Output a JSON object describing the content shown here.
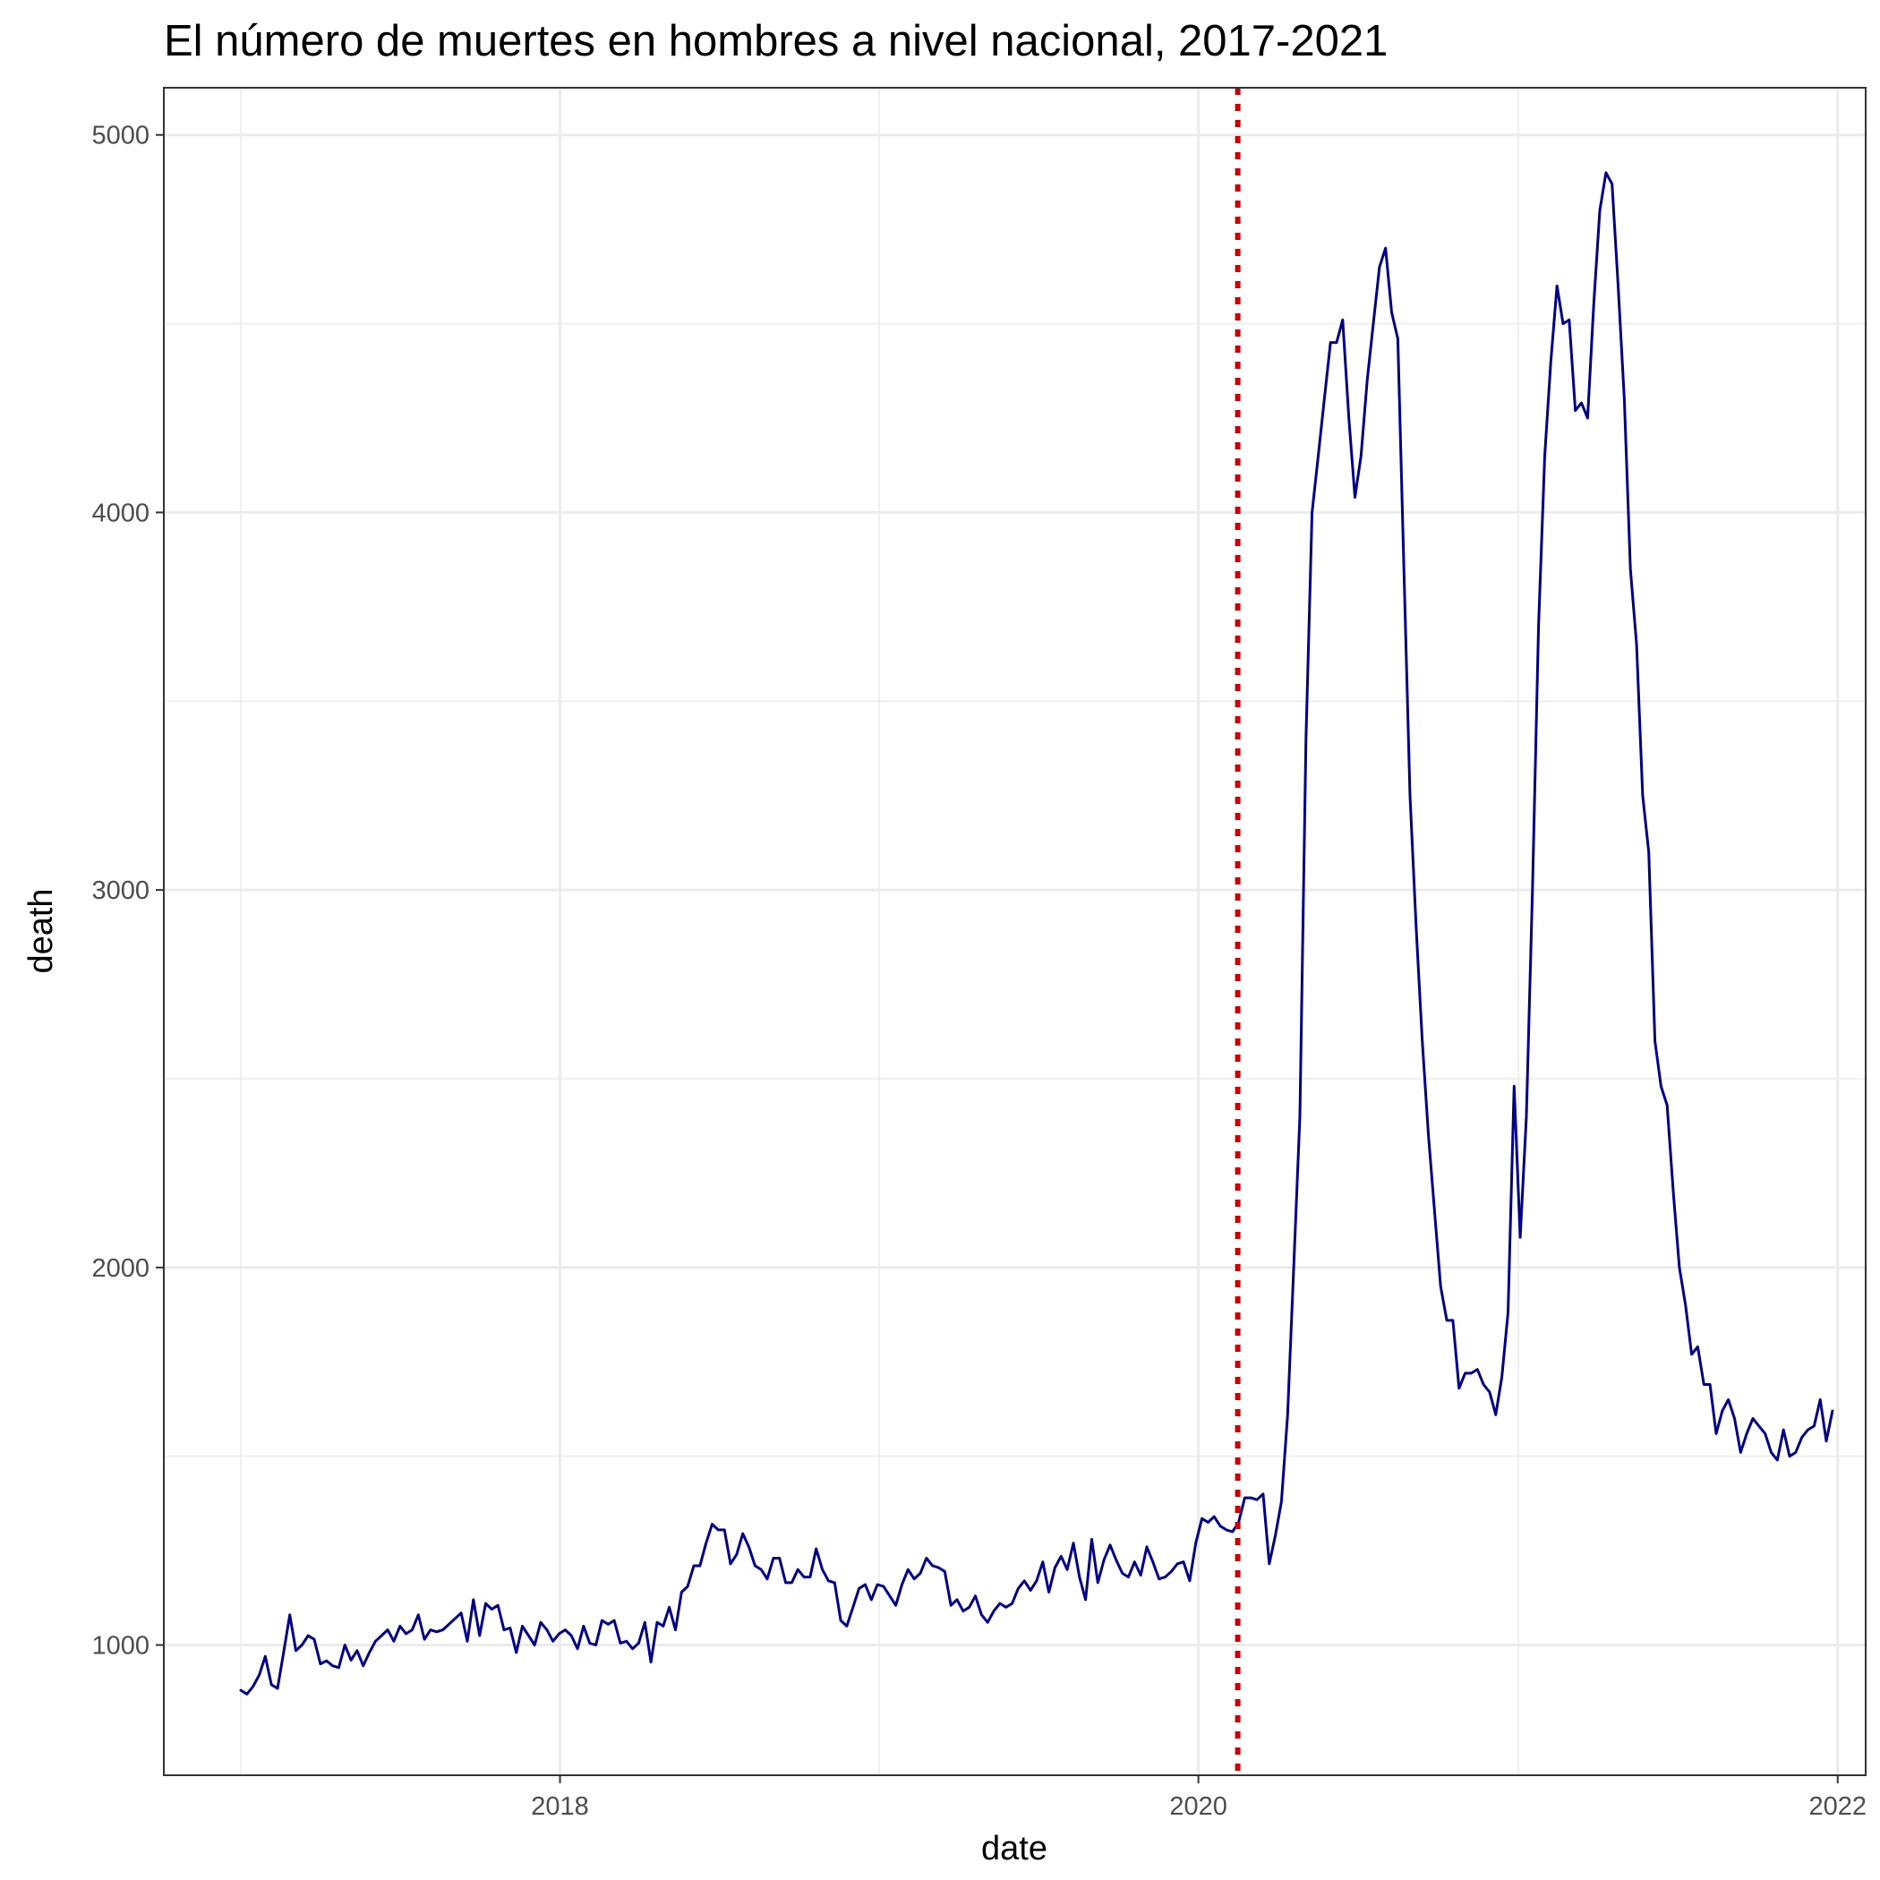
{
  "chart_data": {
    "type": "line",
    "title": "El número de muertes en hombres a nivel nacional, 2017-2021",
    "xlabel": "date",
    "ylabel": "death",
    "x_ticks": [
      "2018",
      "2020",
      "2022"
    ],
    "y_ticks": [
      "1000",
      "2000",
      "3000",
      "4000",
      "5000"
    ],
    "xlim": [
      "2016-10-05",
      "2022-02-02"
    ],
    "ylim": [
      655,
      5125
    ],
    "grid": true,
    "legend": "none",
    "line_color": "#00008B",
    "vline": {
      "date": "2020-02-15",
      "color": "#CC0000",
      "style": "dotted"
    },
    "series": [
      {
        "x_start": "2017-01-01",
        "interval_days": 7,
        "values": [
          880,
          870,
          890,
          920,
          970,
          895,
          885,
          980,
          1080,
          985,
          1000,
          1025,
          1015,
          950,
          958,
          945,
          940,
          1000,
          960,
          985,
          945,
          980,
          1010,
          1025,
          1040,
          1010,
          1050,
          1030,
          1040,
          1080,
          1015,
          1040,
          1035,
          1040,
          1055,
          1070,
          1085,
          1010,
          1120,
          1025,
          1110,
          1095,
          1105,
          1040,
          1045,
          980,
          1050,
          1025,
          1000,
          1060,
          1040,
          1010,
          1030,
          1040,
          1025,
          990,
          1050,
          1005,
          1000,
          1065,
          1055,
          1065,
          1005,
          1010,
          990,
          1005,
          1060,
          955,
          1060,
          1050,
          1100,
          1040,
          1140,
          1155,
          1210,
          1210,
          1270,
          1320,
          1305,
          1305,
          1215,
          1240,
          1295,
          1260,
          1210,
          1200,
          1175,
          1230,
          1230,
          1165,
          1165,
          1200,
          1180,
          1180,
          1255,
          1200,
          1170,
          1165,
          1065,
          1050,
          1100,
          1150,
          1160,
          1120,
          1160,
          1155,
          1130,
          1105,
          1160,
          1200,
          1175,
          1190,
          1230,
          1210,
          1205,
          1195,
          1105,
          1120,
          1090,
          1100,
          1130,
          1080,
          1060,
          1090,
          1110,
          1100,
          1110,
          1150,
          1170,
          1145,
          1170,
          1220,
          1140,
          1205,
          1235,
          1200,
          1270,
          1180,
          1120,
          1280,
          1165,
          1225,
          1265,
          1225,
          1190,
          1180,
          1220,
          1185,
          1260,
          1220,
          1175,
          1180,
          1195,
          1215,
          1220,
          1170,
          1270,
          1335,
          1325,
          1340,
          1315,
          1305,
          1300,
          1325,
          1390,
          1390,
          1385,
          1400,
          1215,
          1290,
          1380,
          1610,
          2000,
          2400,
          3400,
          4000,
          4150,
          4300,
          4450,
          4450,
          4510,
          4250,
          4040,
          4150,
          4350,
          4500,
          4650,
          4700,
          4530,
          4460,
          3850,
          3250,
          2900,
          2600,
          2350,
          2150,
          1950,
          1860,
          1860,
          1680,
          1720,
          1720,
          1730,
          1690,
          1670,
          1610,
          1710,
          1880,
          2480,
          2080,
          2400,
          3000,
          3700,
          4150,
          4400,
          4600,
          4500,
          4510,
          4270,
          4290,
          4250,
          4550,
          4800,
          4900,
          4870,
          4600,
          4300,
          3850,
          3650,
          3250,
          3100,
          2600,
          2480,
          2430,
          2200,
          2000,
          1900,
          1770,
          1790,
          1690,
          1690,
          1560,
          1620,
          1650,
          1600,
          1510,
          1560,
          1600,
          1580,
          1560,
          1510,
          1490,
          1570,
          1500,
          1510,
          1550,
          1570,
          1580,
          1650,
          1540,
          1620
        ]
      }
    ]
  }
}
